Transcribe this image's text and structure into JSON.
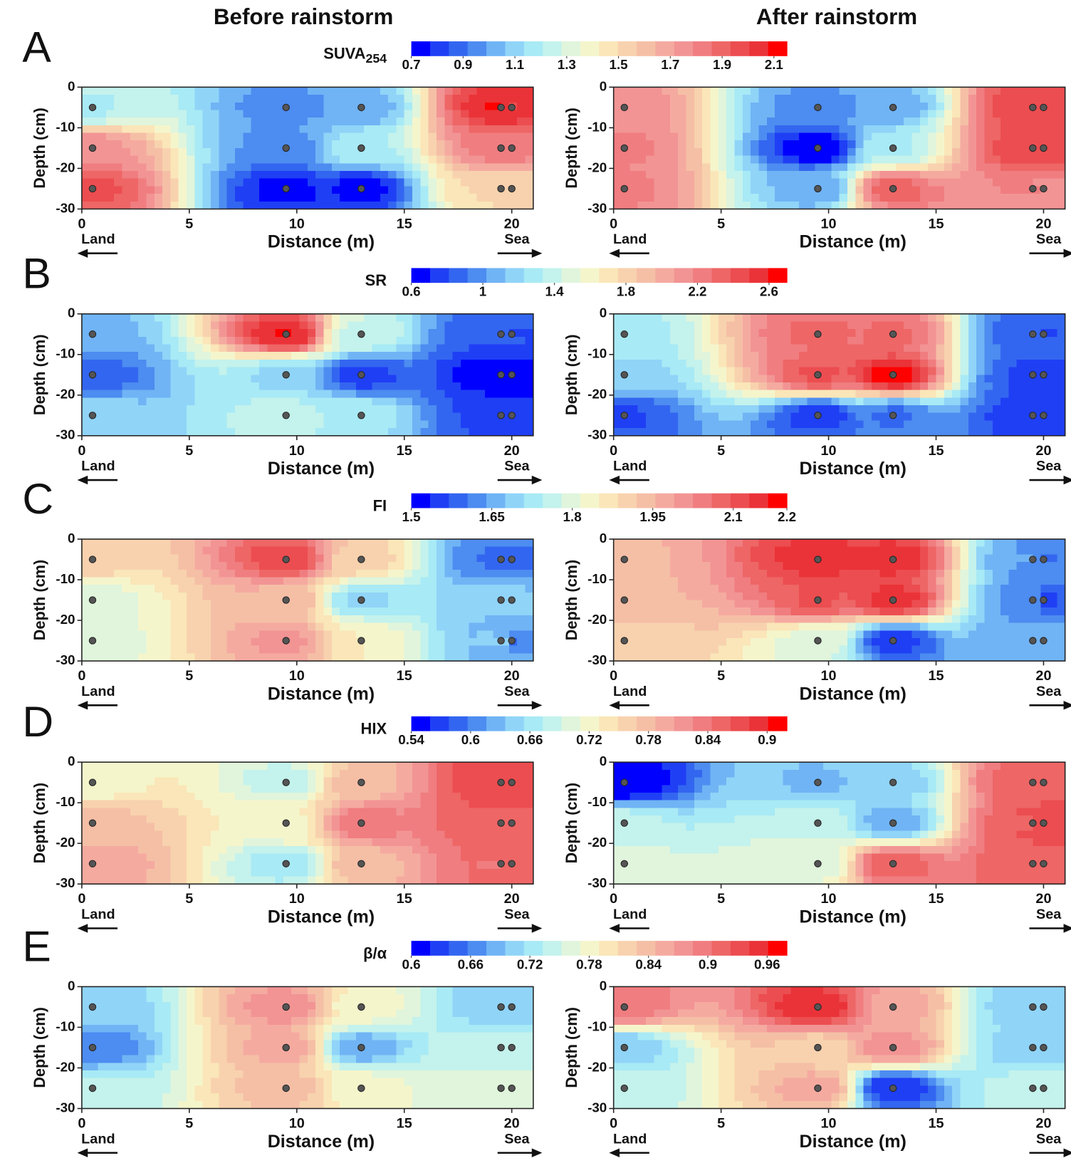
{
  "column_titles": [
    "Before rainstorm",
    "After rainstorm"
  ],
  "colormap": [
    "#0000ff",
    "#1f3ff5",
    "#3366f0",
    "#4d8cf0",
    "#70b4f5",
    "#90d4f8",
    "#a8eaf5",
    "#c4f2ec",
    "#e0f5dc",
    "#f5f5cc",
    "#fae6b8",
    "#f8d2ae",
    "#f5bfa6",
    "#f5aaa0",
    "#f29494",
    "#f07d80",
    "#ee6666",
    "#ec4d50",
    "#ea3338",
    "#ff0000"
  ],
  "chart_data": [
    {
      "type": "contour",
      "panel_label": "A",
      "colorbar_label": "SUVA",
      "colorbar_label_sub": "254",
      "clim": [
        0.7,
        2.15
      ],
      "cticks": [
        0.7,
        0.9,
        1.1,
        1.3,
        1.5,
        1.7,
        1.9,
        2.1
      ],
      "xlim": [
        0,
        21
      ],
      "xticks": [
        0,
        5,
        10,
        15,
        20
      ],
      "ylim": [
        -30,
        0
      ],
      "yticks": [
        0,
        -10,
        -20,
        -30
      ],
      "xlabel": "Distance (m)",
      "ylabel": "Depth (cm)",
      "x_left_label": "Land",
      "x_right_label": "Sea",
      "x": [
        0.5,
        9.5,
        13,
        19.5,
        20
      ],
      "depth": [
        -5,
        -15,
        -25
      ],
      "maps": [
        {
          "z": [
            [
              1.2,
              0.95,
              1.0,
              2.1,
              2.0
            ],
            [
              1.75,
              0.95,
              1.2,
              1.85,
              1.8
            ],
            [
              1.95,
              0.75,
              0.75,
              1.5,
              1.5
            ]
          ]
        },
        {
          "z": [
            [
              1.75,
              0.95,
              1.0,
              2.0,
              1.95
            ],
            [
              1.8,
              0.7,
              1.2,
              2.0,
              2.0
            ],
            [
              1.8,
              1.0,
              1.9,
              1.8,
              1.75
            ]
          ]
        }
      ]
    },
    {
      "type": "contour",
      "panel_label": "B",
      "colorbar_label": "SR",
      "clim": [
        0.6,
        2.7
      ],
      "cticks": [
        0.6,
        1,
        1.4,
        1.8,
        2.2,
        2.6
      ],
      "xlim": [
        0,
        21
      ],
      "xticks": [
        0,
        5,
        10,
        15,
        20
      ],
      "ylim": [
        -30,
        0
      ],
      "yticks": [
        0,
        -10,
        -20,
        -30
      ],
      "xlabel": "Distance (m)",
      "ylabel": "Depth (cm)",
      "x_left_label": "Land",
      "x_right_label": "Sea",
      "x": [
        0.5,
        9.5,
        13,
        19.5,
        20
      ],
      "depth": [
        -5,
        -15,
        -25
      ],
      "maps": [
        {
          "z": [
            [
              1.1,
              2.6,
              1.4,
              0.85,
              0.8
            ],
            [
              0.85,
              1.2,
              0.75,
              0.6,
              0.65
            ],
            [
              1.2,
              1.4,
              1.3,
              0.8,
              0.75
            ]
          ]
        },
        {
          "z": [
            [
              1.3,
              2.3,
              2.3,
              0.85,
              0.8
            ],
            [
              1.2,
              2.4,
              2.65,
              0.8,
              0.75
            ],
            [
              0.8,
              0.75,
              0.9,
              0.75,
              0.75
            ]
          ]
        }
      ]
    },
    {
      "type": "contour",
      "panel_label": "C",
      "colorbar_label": "FI",
      "clim": [
        1.5,
        2.2
      ],
      "cticks": [
        1.5,
        1.65,
        1.8,
        1.95,
        2.1,
        2.2
      ],
      "xlim": [
        0,
        21
      ],
      "xticks": [
        0,
        5,
        10,
        15,
        20
      ],
      "ylim": [
        -30,
        0
      ],
      "yticks": [
        0,
        -10,
        -20,
        -30
      ],
      "xlabel": "Distance (m)",
      "ylabel": "Depth (cm)",
      "x_left_label": "Land",
      "x_right_label": "Sea",
      "x": [
        0.5,
        9.5,
        13,
        19.5,
        20
      ],
      "depth": [
        -5,
        -15,
        -25
      ],
      "maps": [
        {
          "z": [
            [
              1.9,
              2.12,
              1.9,
              1.6,
              1.6
            ],
            [
              1.8,
              1.95,
              1.7,
              1.68,
              1.68
            ],
            [
              1.8,
              2.0,
              1.85,
              1.7,
              1.6
            ]
          ]
        },
        {
          "z": [
            [
              1.95,
              2.15,
              2.15,
              1.65,
              1.6
            ],
            [
              1.95,
              2.1,
              2.15,
              1.65,
              1.55
            ],
            [
              1.9,
              1.8,
              1.55,
              1.65,
              1.65
            ]
          ]
        }
      ]
    },
    {
      "type": "contour",
      "panel_label": "D",
      "colorbar_label": "HIX",
      "clim": [
        0.54,
        0.92
      ],
      "cticks": [
        0.54,
        0.6,
        0.66,
        0.72,
        0.78,
        0.84,
        0.9
      ],
      "xlim": [
        0,
        21
      ],
      "xticks": [
        0,
        5,
        10,
        15,
        20
      ],
      "ylim": [
        -30,
        0
      ],
      "yticks": [
        0,
        -10,
        -20,
        -30
      ],
      "xlabel": "Distance (m)",
      "ylabel": "Depth (cm)",
      "x_left_label": "Land",
      "x_right_label": "Sea",
      "x": [
        0.5,
        9.5,
        13,
        19.5,
        20
      ],
      "depth": [
        -5,
        -15,
        -25
      ],
      "maps": [
        {
          "z": [
            [
              0.72,
              0.68,
              0.78,
              0.88,
              0.88
            ],
            [
              0.78,
              0.72,
              0.84,
              0.86,
              0.86
            ],
            [
              0.8,
              0.66,
              0.78,
              0.84,
              0.86
            ]
          ]
        },
        {
          "z": [
            [
              0.54,
              0.63,
              0.64,
              0.86,
              0.86
            ],
            [
              0.68,
              0.68,
              0.62,
              0.86,
              0.88
            ],
            [
              0.7,
              0.7,
              0.86,
              0.86,
              0.86
            ]
          ]
        }
      ]
    },
    {
      "type": "contour",
      "panel_label": "E",
      "colorbar_label": "β/α",
      "clim": [
        0.6,
        0.98
      ],
      "cticks": [
        0.6,
        0.66,
        0.72,
        0.78,
        0.84,
        0.9,
        0.96
      ],
      "xlim": [
        0,
        21
      ],
      "xticks": [
        0,
        5,
        10,
        15,
        20
      ],
      "ylim": [
        -30,
        0
      ],
      "yticks": [
        0,
        -10,
        -20,
        -30
      ],
      "xlabel": "Distance (m)",
      "ylabel": "Depth (cm)",
      "x_left_label": "Land",
      "x_right_label": "Sea",
      "x": [
        0.5,
        9.5,
        13,
        19.5,
        20
      ],
      "depth": [
        -5,
        -15,
        -25
      ],
      "maps": [
        {
          "z": [
            [
              0.7,
              0.88,
              0.78,
              0.7,
              0.7
            ],
            [
              0.66,
              0.86,
              0.68,
              0.74,
              0.74
            ],
            [
              0.74,
              0.84,
              0.78,
              0.76,
              0.76
            ]
          ]
        },
        {
          "z": [
            [
              0.9,
              0.96,
              0.86,
              0.7,
              0.7
            ],
            [
              0.7,
              0.82,
              0.88,
              0.7,
              0.7
            ],
            [
              0.74,
              0.86,
              0.62,
              0.74,
              0.74
            ]
          ]
        }
      ]
    }
  ]
}
